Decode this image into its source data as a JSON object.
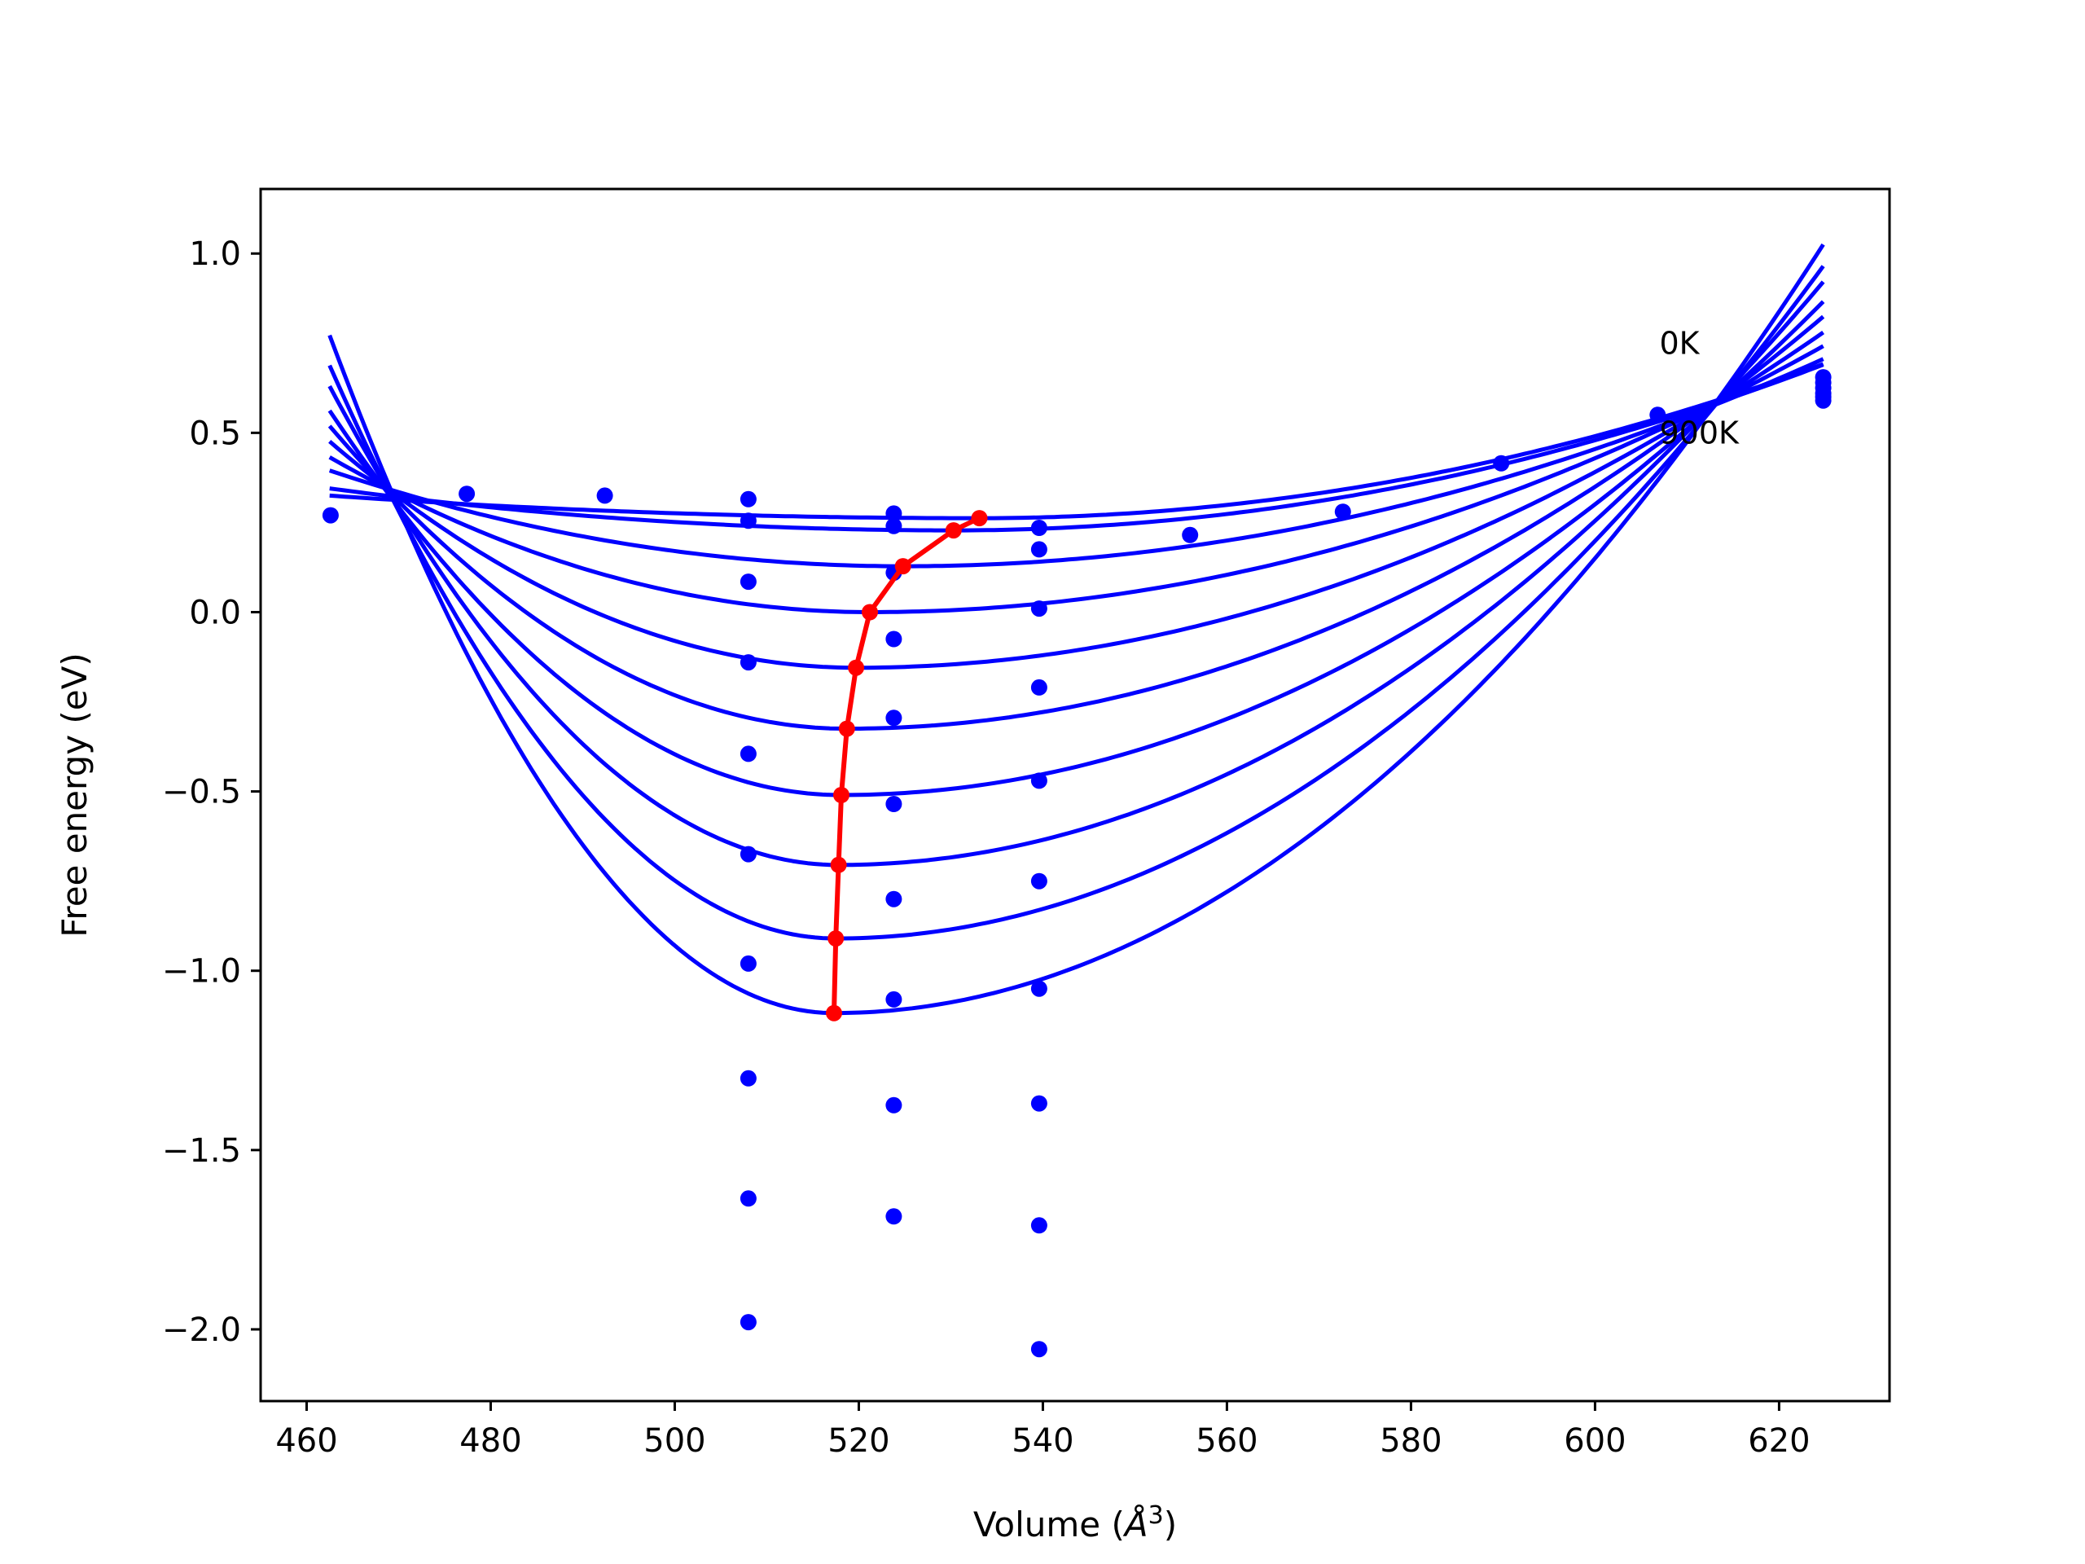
{
  "chart_data": {
    "type": "scatter",
    "xlabel_main": "Volume (",
    "xlabel_unit": "Å",
    "xlabel_sup": "3",
    "xlabel_close": ")",
    "ylabel": "Free energy (eV)",
    "xlim": [
      455,
      632
    ],
    "ylim": [
      -2.2,
      1.18
    ],
    "xticks": [
      460,
      480,
      500,
      520,
      540,
      560,
      580,
      600,
      620
    ],
    "yticks": [
      1.0,
      0.5,
      0.0,
      -0.5,
      -1.0,
      -1.5,
      -2.0
    ],
    "ytick_labels": [
      "1.0",
      "0.5",
      "0.0",
      "−0.5",
      "−1.0",
      "−1.5",
      "−2.0"
    ],
    "grid": false,
    "colors": {
      "fit_curves": "#0000ff",
      "data_points": "#0000ff",
      "minimum_path": "#ff0000"
    },
    "annotations": [
      {
        "text": "0K",
        "x": 607,
        "y": 0.72
      },
      {
        "text": "900K",
        "x": 607,
        "y": 0.47
      }
    ],
    "fit_curves": {
      "x_start": 462.5,
      "x_end": 624.8,
      "curves": [
        {
          "v_min": 533.1,
          "f_min": 0.262,
          "f_start": 0.325,
          "f_end": 0.692
        },
        {
          "v_min": 530.3,
          "f_min": 0.228,
          "f_start": 0.345,
          "f_end": 0.69
        },
        {
          "v_min": 524.8,
          "f_min": 0.128,
          "f_start": 0.395,
          "f_end": 0.706
        },
        {
          "v_min": 521.2,
          "f_min": 0.0,
          "f_start": 0.432,
          "f_end": 0.742
        },
        {
          "v_min": 519.7,
          "f_min": -0.155,
          "f_start": 0.476,
          "f_end": 0.78
        },
        {
          "v_min": 518.7,
          "f_min": -0.325,
          "f_start": 0.519,
          "f_end": 0.824
        },
        {
          "v_min": 518.1,
          "f_min": -0.51,
          "f_start": 0.562,
          "f_end": 0.866
        },
        {
          "v_min": 517.8,
          "f_min": -0.705,
          "f_start": 0.63,
          "f_end": 0.921
        },
        {
          "v_min": 517.5,
          "f_min": -0.91,
          "f_start": 0.688,
          "f_end": 0.965
        },
        {
          "v_min": 517.3,
          "f_min": -1.118,
          "f_start": 0.772,
          "f_end": 1.025
        }
      ]
    },
    "data_points": {
      "x": [
        462.6,
        477.4,
        492.4,
        508.0,
        508.0,
        508.0,
        508.0,
        508.0,
        508.0,
        508.0,
        508.0,
        508.0,
        508.0,
        523.8,
        523.8,
        523.8,
        523.8,
        523.8,
        523.8,
        523.8,
        523.8,
        523.8,
        523.8,
        539.6,
        539.6,
        539.6,
        539.6,
        539.6,
        539.6,
        539.6,
        539.6,
        539.6,
        539.6,
        556.0,
        572.6,
        589.8,
        606.8,
        624.8,
        624.8,
        624.8,
        624.8,
        624.8,
        624.8
      ],
      "y": [
        0.27,
        0.33,
        0.325,
        0.315,
        0.255,
        0.085,
        -0.14,
        -0.395,
        -0.675,
        -0.98,
        -1.3,
        -1.635,
        -1.98,
        0.275,
        0.24,
        0.11,
        -0.075,
        -0.295,
        -0.535,
        -0.8,
        -1.08,
        -1.375,
        -1.685,
        0.235,
        0.175,
        0.01,
        -0.21,
        -0.47,
        -0.75,
        -1.05,
        -1.37,
        -1.71,
        -2.055,
        0.215,
        0.28,
        0.415,
        0.55,
        0.655,
        0.64,
        0.625,
        0.61,
        0.6,
        0.59
      ]
    },
    "minimum_path": {
      "x": [
        533.1,
        530.3,
        524.8,
        521.2,
        519.7,
        518.7,
        518.1,
        517.8,
        517.5,
        517.3
      ],
      "y": [
        0.262,
        0.228,
        0.128,
        0.0,
        -0.155,
        -0.325,
        -0.51,
        -0.705,
        -0.91,
        -1.118
      ]
    }
  }
}
